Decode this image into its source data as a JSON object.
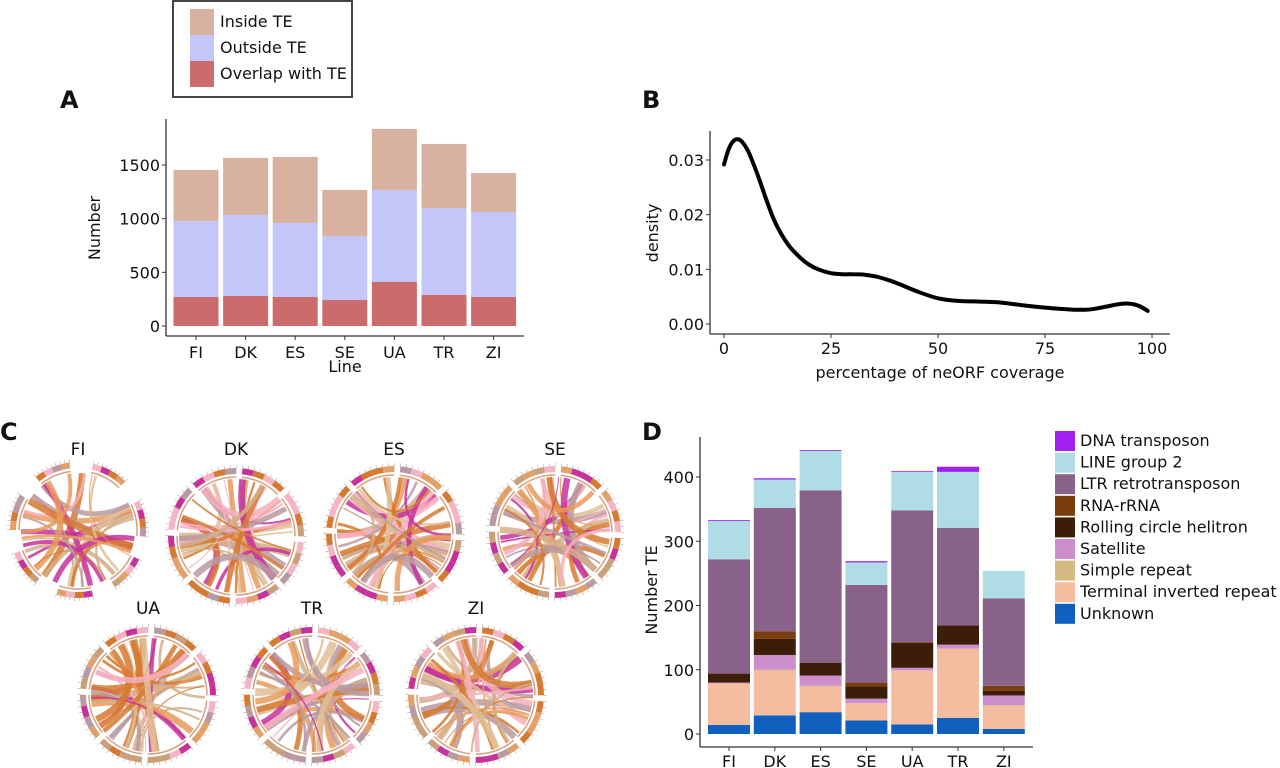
{
  "panels": {
    "A": "A",
    "B": "B",
    "C": "C",
    "D": "D"
  },
  "chart_data": [
    {
      "id": "A",
      "type": "bar",
      "stacked": true,
      "title": "",
      "xlabel": "Line",
      "ylabel": "Number",
      "categories": [
        "FI",
        "DK",
        "ES",
        "SE",
        "UA",
        "TR",
        "ZI"
      ],
      "ylim": [
        0,
        1900
      ],
      "yticks": [
        0,
        500,
        1000,
        1500
      ],
      "legend_position": "top-outside-box",
      "series": [
        {
          "name": "Overlap with TE",
          "color": "#cc6b6b",
          "values": [
            270,
            280,
            270,
            242,
            410,
            289,
            270
          ]
        },
        {
          "name": "Outside TE",
          "color": "#c4c6fa",
          "values": [
            709,
            755,
            690,
            597,
            858,
            811,
            792
          ]
        },
        {
          "name": "Inside TE",
          "color": "#d8b1a0",
          "values": [
            475,
            531,
            615,
            429,
            568,
            596,
            364
          ]
        }
      ],
      "legend": [
        "Inside TE",
        "Outside TE",
        "Overlap with TE"
      ]
    },
    {
      "id": "B",
      "type": "line",
      "title": "",
      "xlabel": "percentage of neORF coverage",
      "ylabel": "density",
      "xlim": [
        -5,
        104
      ],
      "ylim": [
        -0.0015,
        0.0355
      ],
      "xticks": [
        0,
        25,
        50,
        75,
        100
      ],
      "yticks": [
        "0.00",
        "0.01",
        "0.02",
        "0.03"
      ],
      "ytick_values": [
        0,
        0.01,
        0.02,
        0.03
      ],
      "series": [
        {
          "name": "density",
          "color": "#000000",
          "x": [
            0,
            1,
            2,
            3,
            4,
            5,
            6,
            8,
            10,
            12,
            15,
            18,
            20,
            22,
            25,
            28,
            30,
            33,
            36,
            40,
            45,
            50,
            55,
            60,
            65,
            70,
            75,
            80,
            83,
            86,
            90,
            93,
            95,
            97,
            99
          ],
          "y": [
            0.0292,
            0.0318,
            0.0333,
            0.0338,
            0.0335,
            0.0325,
            0.031,
            0.027,
            0.0225,
            0.0185,
            0.0145,
            0.012,
            0.0108,
            0.01,
            0.0093,
            0.0091,
            0.0091,
            0.009,
            0.0086,
            0.0076,
            0.006,
            0.0047,
            0.0042,
            0.0041,
            0.0039,
            0.0034,
            0.003,
            0.0027,
            0.0026,
            0.0027,
            0.0033,
            0.0037,
            0.0037,
            0.0033,
            0.0024
          ]
        }
      ]
    },
    {
      "id": "D",
      "type": "bar",
      "stacked": true,
      "title": "",
      "xlabel": "",
      "ylabel": "Number TE",
      "categories": [
        "FI",
        "DK",
        "ES",
        "SE",
        "UA",
        "TR",
        "ZI"
      ],
      "ylim": [
        0,
        460
      ],
      "yticks": [
        0,
        100,
        200,
        300,
        400
      ],
      "legend_position": "right",
      "series": [
        {
          "name": "Unknown",
          "color": "#1060c0",
          "values": [
            14,
            29,
            34,
            21,
            15,
            25,
            8
          ]
        },
        {
          "name": "Terminal inverted repeat",
          "color": "#f5bda0",
          "values": [
            65,
            70,
            40,
            27,
            84,
            108,
            36
          ]
        },
        {
          "name": "Simple repeat",
          "color": "#d4bb84",
          "values": [
            0,
            1,
            1,
            0,
            0,
            0,
            1
          ]
        },
        {
          "name": "Satellite",
          "color": "#cc8ecc",
          "values": [
            1,
            23,
            16,
            7,
            4,
            6,
            15
          ]
        },
        {
          "name": "Rolling circle helitron",
          "color": "#3c1e08",
          "values": [
            14,
            25,
            20,
            19,
            39,
            30,
            7
          ]
        },
        {
          "name": "RNA-rRNA",
          "color": "#7a3e0e",
          "values": [
            0,
            12,
            0,
            6,
            1,
            0,
            8
          ]
        },
        {
          "name": "LTR retrotransposon",
          "color": "#886288",
          "values": [
            178,
            192,
            268,
            152,
            205,
            152,
            136
          ]
        },
        {
          "name": "LINE group 2",
          "color": "#b0dde5",
          "values": [
            60,
            44,
            62,
            35,
            60,
            87,
            43
          ]
        },
        {
          "name": "DNA transposon",
          "color": "#a020f0",
          "values": [
            1,
            2,
            1,
            2,
            1,
            8,
            0
          ]
        }
      ],
      "legend": [
        "DNA transposon",
        "LINE group 2",
        "LTR retrotransposon",
        "RNA-rRNA",
        "Rolling circle helitron",
        "Satellite",
        "Simple repeat",
        "Terminal inverted repeat",
        "Unknown"
      ]
    },
    {
      "id": "C",
      "type": "chord",
      "title": "",
      "plots": [
        "FI",
        "DK",
        "ES",
        "SE",
        "UA",
        "TR",
        "ZI"
      ],
      "chord_colors": [
        "#d67a32",
        "#e89a5c",
        "#f7b0c0",
        "#d4ae8a",
        "#c7319a",
        "#b89aa0",
        "#e0c098"
      ]
    }
  ]
}
